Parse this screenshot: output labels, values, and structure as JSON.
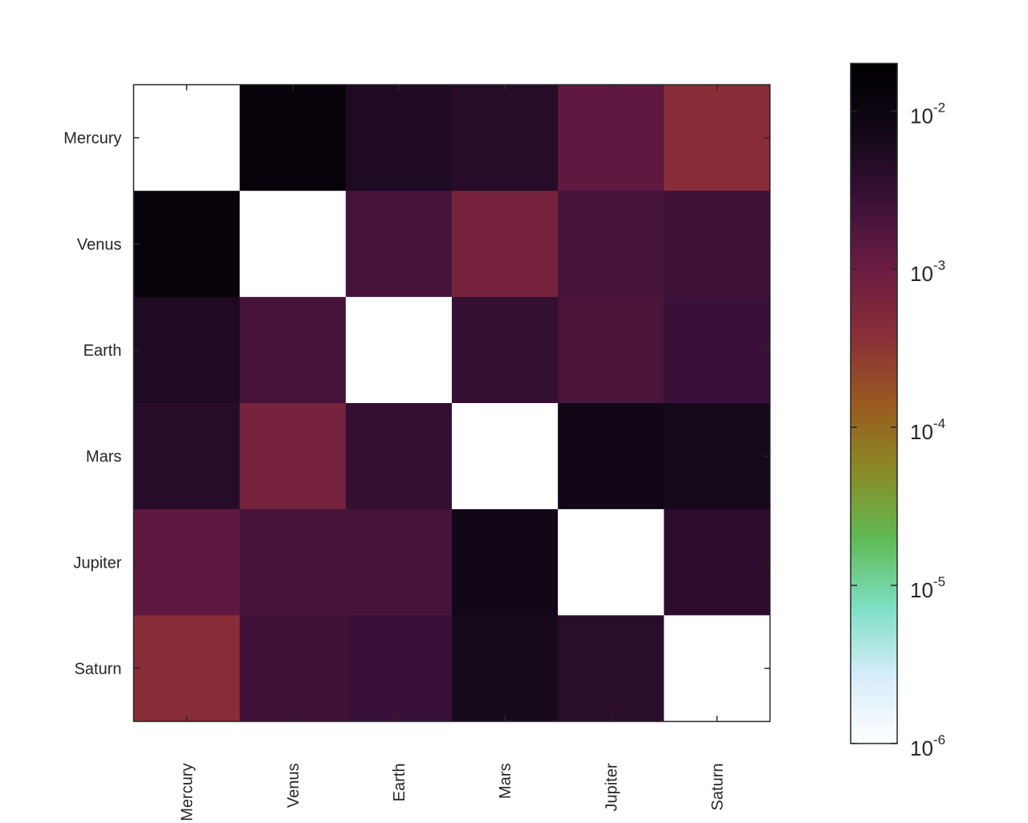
{
  "chart_data": {
    "type": "heatmap",
    "title": "",
    "xlabel": "",
    "ylabel": "",
    "x_categories": [
      "Mercury",
      "Venus",
      "Earth",
      "Mars",
      "Jupiter",
      "Saturn"
    ],
    "y_categories": [
      "Mercury",
      "Venus",
      "Earth",
      "Mars",
      "Jupiter",
      "Saturn"
    ],
    "values": [
      [
        null,
        0.013,
        0.0055,
        0.0045,
        0.0013,
        0.0004
      ],
      [
        0.013,
        null,
        0.0022,
        0.0007,
        0.0022,
        0.0025
      ],
      [
        0.0055,
        0.0022,
        null,
        0.0032,
        0.002,
        0.0028
      ],
      [
        0.0045,
        0.0007,
        0.0032,
        null,
        0.008,
        0.0065
      ],
      [
        0.0013,
        0.0022,
        0.0022,
        0.008,
        null,
        0.0038
      ],
      [
        0.0004,
        0.0025,
        0.0028,
        0.0065,
        0.0042,
        null
      ]
    ],
    "colorbar": {
      "scale": "log",
      "range": [
        1e-06,
        0.02
      ],
      "tick_base": "10",
      "tick_exponents": [
        "-6",
        "-5",
        "-4",
        "-3",
        "-2"
      ],
      "tick_values": [
        1e-06,
        1e-05,
        0.0001,
        0.001,
        0.01
      ]
    },
    "colormap": [
      "#ffffff",
      "#d6ecfa",
      "#7ddfc3",
      "#5fbb55",
      "#8a8a25",
      "#9a5a1f",
      "#8a2e38",
      "#6b1c42",
      "#3a1038",
      "#120818",
      "#000000"
    ],
    "diagonal_color": "#ffffff",
    "grid": false
  }
}
